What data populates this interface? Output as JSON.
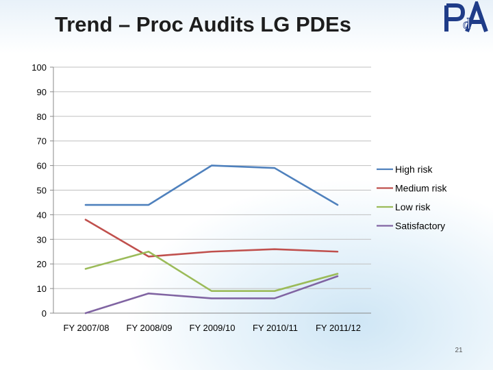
{
  "slide": {
    "title": "Trend – Proc Audits LG PDEs",
    "page_number": "21",
    "logo": {
      "name": "ppda-logo-icon",
      "text": "PdA",
      "color": "#1f3c88"
    }
  },
  "chart_data": {
    "type": "line",
    "title": "",
    "xlabel": "",
    "ylabel": "",
    "categories": [
      "FY 2007/08",
      "FY 2008/09",
      "FY 2009/10",
      "FY 2010/11",
      "FY 2011/12"
    ],
    "series": [
      {
        "name": "High risk",
        "values": [
          44,
          44,
          60,
          59,
          44
        ],
        "color": "#4f81bd"
      },
      {
        "name": "Medium risk",
        "values": [
          38,
          23,
          25,
          26,
          25
        ],
        "color": "#c0504d"
      },
      {
        "name": "Low risk",
        "values": [
          18,
          25,
          9,
          9,
          16
        ],
        "color": "#9bbb59"
      },
      {
        "name": "Satisfactory",
        "values": [
          0,
          8,
          6,
          6,
          15
        ],
        "color": "#8064a2"
      }
    ],
    "ylim": [
      0,
      100
    ],
    "yticks": [
      "0",
      "10",
      "20",
      "30",
      "40",
      "50",
      "60",
      "70",
      "80",
      "90",
      "100"
    ],
    "grid": true,
    "legend": "right"
  }
}
